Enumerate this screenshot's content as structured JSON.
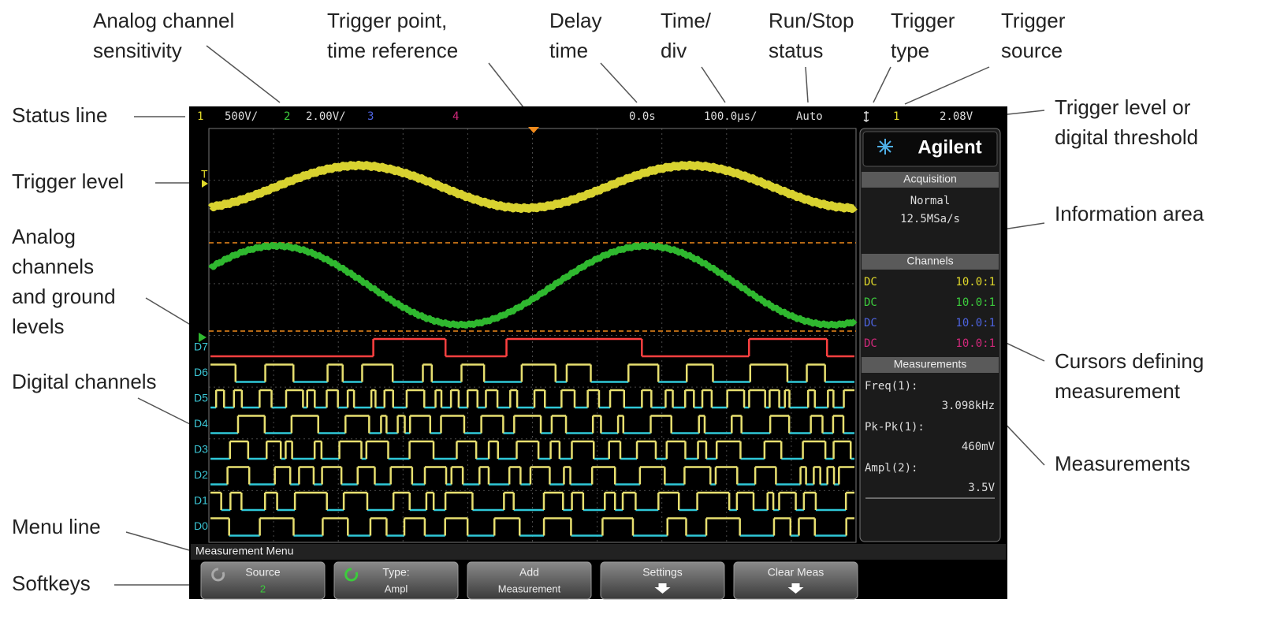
{
  "annotations": {
    "top": [
      {
        "lines": [
          "Analog channel",
          "sensitivity"
        ]
      },
      {
        "lines": [
          "Trigger point,",
          "time reference"
        ]
      },
      {
        "lines": [
          "Delay",
          "time"
        ]
      },
      {
        "lines": [
          "Time/",
          "div"
        ]
      },
      {
        "lines": [
          "Run/Stop",
          "status"
        ]
      },
      {
        "lines": [
          "Trigger",
          "type"
        ]
      },
      {
        "lines": [
          "Trigger",
          "source"
        ]
      }
    ],
    "left": [
      {
        "lines": [
          "Status line"
        ]
      },
      {
        "lines": [
          "Trigger level"
        ]
      },
      {
        "lines": [
          "Analog",
          "channels",
          "and ground",
          "levels"
        ]
      },
      {
        "lines": [
          "Digital channels"
        ]
      },
      {
        "lines": [
          "Menu line"
        ]
      },
      {
        "lines": [
          "Softkeys"
        ]
      }
    ],
    "right": [
      {
        "lines": [
          "Trigger level or",
          "digital threshold"
        ]
      },
      {
        "lines": [
          "Information area"
        ]
      },
      {
        "lines": [
          "Cursors defining",
          "measurement"
        ]
      },
      {
        "lines": [
          "Measurements"
        ]
      }
    ]
  },
  "status_line": {
    "ch1": "1",
    "ch1_scale": "500V/",
    "ch2": "2",
    "ch2_scale": "2.00V/",
    "ch3": "3",
    "ch4": "4",
    "delay": "0.0s",
    "time_div": "100.0µs/",
    "run_status": "Auto",
    "trigger_source": "1",
    "trigger_level": "2.08V"
  },
  "screen_labels": {
    "trigger": "T",
    "digital": [
      "D7",
      "D6",
      "D5",
      "D4",
      "D3",
      "D2",
      "D1",
      "D0"
    ]
  },
  "info_panel": {
    "brand": "Agilent",
    "acquisition": {
      "header": "Acquisition",
      "mode": "Normal",
      "rate": "12.5MSa/s"
    },
    "channels": {
      "header": "Channels",
      "rows": [
        [
          "DC",
          "10.0:1"
        ],
        [
          "DC",
          "10.0:1"
        ],
        [
          "DC",
          "10.0:1"
        ],
        [
          "DC",
          "10.0:1"
        ]
      ]
    },
    "measurements": {
      "header": "Measurements",
      "items": [
        {
          "name": "Freq(1):",
          "value": "3.098kHz"
        },
        {
          "name": "Pk-Pk(1):",
          "value": "460mV"
        },
        {
          "name": "Ampl(2):",
          "value": "3.5V"
        }
      ]
    }
  },
  "menu_line": "Measurement Menu",
  "softkeys": [
    {
      "label": "Source",
      "value": "2"
    },
    {
      "label": "Type:",
      "value": "Ampl"
    },
    {
      "label": "Add",
      "value": "Measurement"
    },
    {
      "label": "Settings"
    },
    {
      "label": "Clear Meas"
    }
  ]
}
